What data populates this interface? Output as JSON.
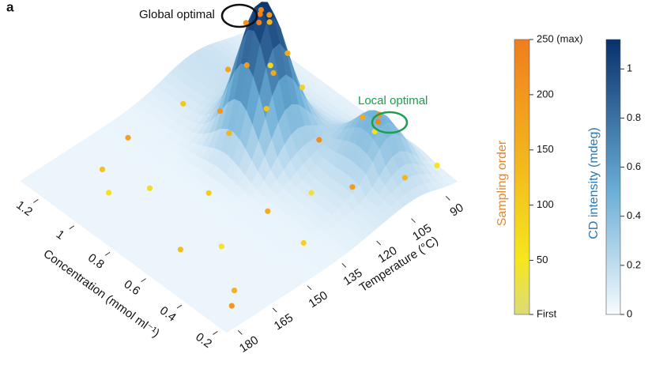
{
  "panel_label": "a",
  "chart_data": {
    "type": "surface3d",
    "annotations": [
      "Global optimal",
      "Local optimal"
    ],
    "xlabel": "Concentration (mmol ml⁻¹)",
    "ylabel": "Temperature (°C)",
    "zlabel": "CD intensity (mdeg)",
    "xlim": [
      0.15,
      1.3
    ],
    "ylim": [
      185,
      85
    ],
    "xticks": [
      1.2,
      1.0,
      0.8,
      0.6,
      0.4,
      0.2
    ],
    "yticks": [
      180,
      165,
      150,
      135,
      120,
      105,
      90
    ],
    "zlim": [
      0,
      1.12
    ],
    "zticks": [
      0,
      0.2,
      0.4,
      0.6,
      0.8,
      1.0
    ],
    "clabel": "Sampling order",
    "clim": [
      1,
      250
    ],
    "cticks": [
      {
        "value": 1,
        "label": "First"
      },
      50,
      100,
      150,
      200,
      {
        "value": 250,
        "label": "250 (max)"
      }
    ],
    "points": {
      "x": [
        0.8,
        0.82,
        0.78,
        0.8,
        0.76,
        0.84,
        0.85,
        0.75,
        0.9,
        0.7,
        0.78,
        0.88,
        0.72,
        0.92,
        0.4,
        0.42,
        0.38,
        1.1,
        1.0,
        1.15,
        0.9,
        0.6,
        0.5,
        0.3,
        0.25,
        0.7,
        0.5,
        0.45,
        0.3,
        0.6,
        0.35,
        0.55,
        1.0,
        1.1,
        0.25,
        0.2
      ],
      "y": [
        120,
        118,
        122,
        116,
        119,
        123,
        130,
        112,
        118,
        125,
        135,
        108,
        108,
        128,
        100,
        98,
        103,
        165,
        170,
        150,
        160,
        170,
        160,
        170,
        175,
        150,
        140,
        125,
        140,
        110,
        115,
        95,
        100,
        130,
        100,
        90
      ],
      "z": [
        1.05,
        1.04,
        1.03,
        1.0,
        1.02,
        0.98,
        0.7,
        0.72,
        0.55,
        0.5,
        0.35,
        0.4,
        0.45,
        0.3,
        0.42,
        0.43,
        0.4,
        0.1,
        0.08,
        0.12,
        0.1,
        0.05,
        0.06,
        0.04,
        0.03,
        0.15,
        0.1,
        0.12,
        0.06,
        0.2,
        0.15,
        0.25,
        0.25,
        0.2,
        0.15,
        0.18
      ],
      "order": [
        240,
        230,
        248,
        200,
        150,
        210,
        180,
        160,
        190,
        120,
        140,
        170,
        90,
        200,
        230,
        210,
        60,
        120,
        60,
        180,
        70,
        130,
        40,
        150,
        200,
        100,
        160,
        30,
        90,
        220,
        190,
        170,
        80,
        110,
        140,
        50
      ]
    }
  }
}
